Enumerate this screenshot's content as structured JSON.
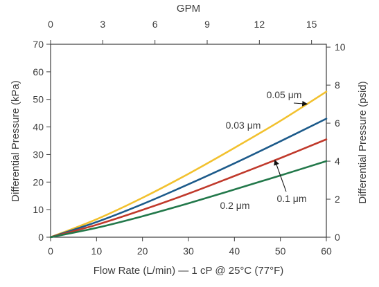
{
  "chart_data": {
    "type": "line",
    "title": "",
    "xlabel": "Flow Rate (L/min) — 1 cP @ 25°C (77°F)",
    "ylabel": "Differential Pressure (kPa)",
    "y2label": "Differential Pressure (psid)",
    "x2label": "GPM",
    "xlim": [
      0,
      60
    ],
    "ylim": [
      0,
      70
    ],
    "x2lim": [
      0,
      15.85
    ],
    "y2lim": [
      0,
      10.15
    ],
    "xticks": [
      0,
      10,
      20,
      30,
      40,
      50,
      60
    ],
    "yticks": [
      0,
      10,
      20,
      30,
      40,
      50,
      60,
      70
    ],
    "x2ticks": [
      0,
      3,
      6,
      9,
      12,
      15
    ],
    "y2ticks": [
      0,
      2,
      4,
      6,
      8,
      10
    ],
    "grid": false,
    "legend": "none",
    "series": [
      {
        "name": "0.05 μm",
        "color": "#f2c12e",
        "x": [
          0,
          10,
          20,
          30,
          40,
          50,
          60
        ],
        "y": [
          0,
          6.5,
          14.3,
          23,
          32.4,
          42.2,
          52.8
        ]
      },
      {
        "name": "0.03 μm",
        "color": "#1c5a8a",
        "x": [
          0,
          10,
          20,
          30,
          40,
          50,
          60
        ],
        "y": [
          0,
          5.5,
          12,
          19.2,
          26.8,
          34.8,
          43
        ]
      },
      {
        "name": "0.1 μm",
        "color": "#c0392b",
        "x": [
          0,
          10,
          20,
          30,
          40,
          50,
          60
        ],
        "y": [
          0,
          4.5,
          9.9,
          15.8,
          22.2,
          28.7,
          35.5
        ]
      },
      {
        "name": "0.2 μm",
        "color": "#22784a",
        "x": [
          0,
          10,
          20,
          30,
          40,
          50,
          60
        ],
        "y": [
          0,
          3.4,
          7.6,
          12.3,
          17.3,
          22.4,
          27.6
        ]
      }
    ],
    "annotations": [
      {
        "text": "0.05 μm",
        "series": "0.05 μm",
        "arrow_to_x": 55.8
      },
      {
        "text": "0.03 μm",
        "series": "0.03 μm",
        "arrow_to_x": null
      },
      {
        "text": "0.1 μm",
        "series": "0.1 μm",
        "arrow_to_x": 48.8
      },
      {
        "text": "0.2 μm",
        "series": "0.2 μm",
        "arrow_to_x": null
      }
    ]
  }
}
